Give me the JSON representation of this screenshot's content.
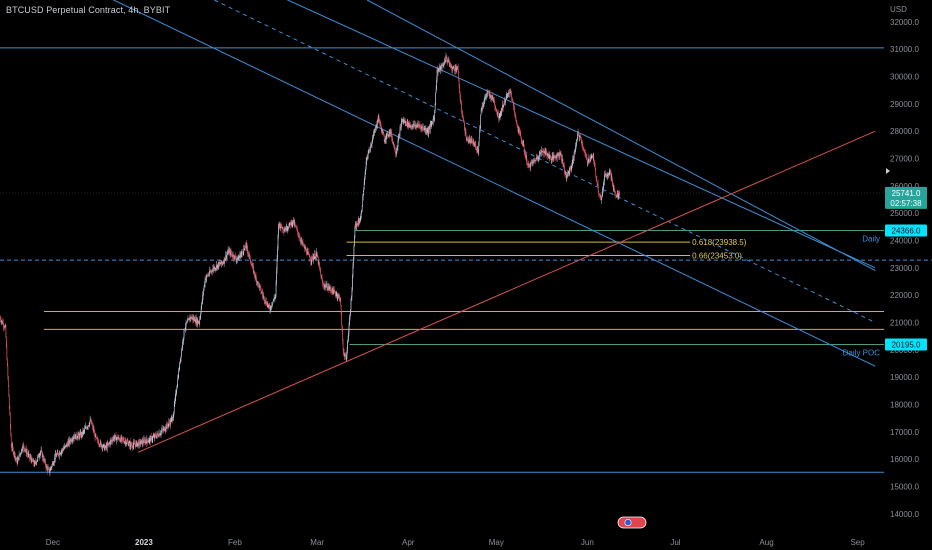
{
  "title": "BTCUSD Perpetual Contract, 4h, BYBIT",
  "colors": {
    "background": "#000000",
    "channel": "#3e8fd8",
    "support_red": "#d9534f",
    "fib": "#d4b84a",
    "yellow_level": "#c9b24a",
    "green_level": "#4e9a7a",
    "current_price_bg": "#26a69a",
    "cyan_tag": "#00e5ff",
    "candle_up": "#b9c7da",
    "candle_down": "#e05560"
  },
  "chart_data": {
    "type": "candlestick",
    "symbol": "BTCUSD Perpetual Contract",
    "interval": "4h",
    "exchange": "BYBIT",
    "y_unit": "USD",
    "ylim": [
      13700,
      32800
    ],
    "xlim": [
      "2022-11-13",
      "2023-09-10"
    ],
    "y_ticks": [
      14000,
      15000,
      16000,
      17000,
      18000,
      19000,
      20000,
      21000,
      22000,
      23000,
      24000,
      25000,
      26000,
      27000,
      28000,
      29000,
      30000,
      31000,
      32000
    ],
    "y_tick_labels": [
      "14000.0",
      "15000.0",
      "16000.0",
      "17000.0",
      "18000.0",
      "19000.0",
      "20000.0",
      "21000.0",
      "22000.0",
      "23000.0",
      "24000.0",
      "25000.0",
      "26000.0",
      "27000.0",
      "28000.0",
      "29000.0",
      "30000.0",
      "31000.0",
      "32000.0"
    ],
    "x_ticks": [
      {
        "date": "2022-12-01",
        "label": "Dec",
        "bold": false
      },
      {
        "date": "2023-01-01",
        "label": "2023",
        "bold": true
      },
      {
        "date": "2023-02-01",
        "label": "Feb",
        "bold": false
      },
      {
        "date": "2023-03-01",
        "label": "Mar",
        "bold": false
      },
      {
        "date": "2023-04-01",
        "label": "Apr",
        "bold": false
      },
      {
        "date": "2023-05-01",
        "label": "May",
        "bold": false
      },
      {
        "date": "2023-06-01",
        "label": "Jun",
        "bold": false
      },
      {
        "date": "2023-07-01",
        "label": "Jul",
        "bold": false
      },
      {
        "date": "2023-08-01",
        "label": "Aug",
        "bold": false
      },
      {
        "date": "2023-09-01",
        "label": "Sep",
        "bold": false
      }
    ],
    "price_path": [
      [
        "2022-11-13",
        21200
      ],
      [
        "2022-11-15",
        20800
      ],
      [
        "2022-11-17",
        16500
      ],
      [
        "2022-11-19",
        15900
      ],
      [
        "2022-11-21",
        16500
      ],
      [
        "2022-11-23",
        16100
      ],
      [
        "2022-11-25",
        15800
      ],
      [
        "2022-11-27",
        16300
      ],
      [
        "2022-11-29",
        15700
      ],
      [
        "2022-11-30",
        15550
      ],
      [
        "2022-12-02",
        16100
      ],
      [
        "2022-12-05",
        16400
      ],
      [
        "2022-12-08",
        16800
      ],
      [
        "2022-12-11",
        16900
      ],
      [
        "2022-12-14",
        17400
      ],
      [
        "2022-12-16",
        16700
      ],
      [
        "2022-12-19",
        16400
      ],
      [
        "2022-12-22",
        16800
      ],
      [
        "2022-12-25",
        16700
      ],
      [
        "2022-12-28",
        16500
      ],
      [
        "2022-12-31",
        16600
      ],
      [
        "2023-01-03",
        16700
      ],
      [
        "2023-01-06",
        16900
      ],
      [
        "2023-01-09",
        17200
      ],
      [
        "2023-01-11",
        17500
      ],
      [
        "2023-01-13",
        19200
      ],
      [
        "2023-01-15",
        20800
      ],
      [
        "2023-01-17",
        21200
      ],
      [
        "2023-01-20",
        21000
      ],
      [
        "2023-01-22",
        22600
      ],
      [
        "2023-01-25",
        23000
      ],
      [
        "2023-01-28",
        23200
      ],
      [
        "2023-01-30",
        23600
      ],
      [
        "2023-02-02",
        23300
      ],
      [
        "2023-02-05",
        23800
      ],
      [
        "2023-02-08",
        22700
      ],
      [
        "2023-02-11",
        21900
      ],
      [
        "2023-02-13",
        21500
      ],
      [
        "2023-02-15",
        22000
      ],
      [
        "2023-02-16",
        24600
      ],
      [
        "2023-02-18",
        24400
      ],
      [
        "2023-02-21",
        24700
      ],
      [
        "2023-02-24",
        23900
      ],
      [
        "2023-02-27",
        23300
      ],
      [
        "2023-03-01",
        23500
      ],
      [
        "2023-03-03",
        22400
      ],
      [
        "2023-03-06",
        22200
      ],
      [
        "2023-03-09",
        21900
      ],
      [
        "2023-03-10",
        20000
      ],
      [
        "2023-03-11",
        19600
      ],
      [
        "2023-03-13",
        22200
      ],
      [
        "2023-03-14",
        24500
      ],
      [
        "2023-03-16",
        24800
      ],
      [
        "2023-03-18",
        27000
      ],
      [
        "2023-03-20",
        27700
      ],
      [
        "2023-03-22",
        28500
      ],
      [
        "2023-03-24",
        27700
      ],
      [
        "2023-03-26",
        28000
      ],
      [
        "2023-03-28",
        27200
      ],
      [
        "2023-03-30",
        28400
      ],
      [
        "2023-04-02",
        28200
      ],
      [
        "2023-04-05",
        28200
      ],
      [
        "2023-04-08",
        28000
      ],
      [
        "2023-04-10",
        28500
      ],
      [
        "2023-04-11",
        30200
      ],
      [
        "2023-04-13",
        30400
      ],
      [
        "2023-04-14",
        30700
      ],
      [
        "2023-04-16",
        30300
      ],
      [
        "2023-04-18",
        30300
      ],
      [
        "2023-04-19",
        29000
      ],
      [
        "2023-04-21",
        27700
      ],
      [
        "2023-04-23",
        27600
      ],
      [
        "2023-04-25",
        27300
      ],
      [
        "2023-04-26",
        28800
      ],
      [
        "2023-04-28",
        29400
      ],
      [
        "2023-04-30",
        29200
      ],
      [
        "2023-05-02",
        28500
      ],
      [
        "2023-05-04",
        29100
      ],
      [
        "2023-05-06",
        29500
      ],
      [
        "2023-05-08",
        28300
      ],
      [
        "2023-05-10",
        27600
      ],
      [
        "2023-05-12",
        26700
      ],
      [
        "2023-05-14",
        26900
      ],
      [
        "2023-05-17",
        27300
      ],
      [
        "2023-05-20",
        27000
      ],
      [
        "2023-05-23",
        27200
      ],
      [
        "2023-05-25",
        26300
      ],
      [
        "2023-05-27",
        26800
      ],
      [
        "2023-05-29",
        27900
      ],
      [
        "2023-05-30",
        27700
      ],
      [
        "2023-06-01",
        26900
      ],
      [
        "2023-06-03",
        27100
      ],
      [
        "2023-06-05",
        25800
      ],
      [
        "2023-06-06",
        25500
      ],
      [
        "2023-06-07",
        26400
      ],
      [
        "2023-06-09",
        26500
      ],
      [
        "2023-06-10",
        25900
      ],
      [
        "2023-06-11",
        25600
      ],
      [
        "2023-06-12",
        25741
      ]
    ],
    "current_price": {
      "value": 25741.0,
      "label": "25741.0",
      "countdown": "02:57:38"
    },
    "lines": {
      "channel": [
        {
          "name": "channel-upper",
          "from": [
            "2022-11-13",
            37600
          ],
          "to": [
            "2023-09-07",
            23000
          ]
        },
        {
          "name": "channel-lower",
          "from": [
            "2022-11-13",
            34800
          ],
          "to": [
            "2023-09-07",
            19400
          ]
        },
        {
          "name": "channel-outer-top",
          "from": [
            "2023-03-18",
            32800
          ],
          "to": [
            "2023-09-07",
            22900
          ]
        },
        {
          "name": "channel-median-dashed",
          "from": [
            "2023-01-25",
            32800
          ],
          "to": [
            "2023-09-07",
            21000
          ]
        }
      ],
      "horizontal": [
        {
          "name": "resistance-31000",
          "value": 31050,
          "style": "solid-blue"
        },
        {
          "name": "blue-dashed-23300",
          "value": 23280,
          "style": "dashed-blue"
        },
        {
          "name": "support-15500",
          "value": 15520,
          "style": "solid-blue"
        }
      ],
      "support_red": {
        "from": [
          "2022-12-30",
          16250
        ],
        "to": [
          "2023-09-07",
          28000
        ]
      }
    },
    "levels": [
      {
        "name": "daily",
        "from": "2023-03-14",
        "value": 24366.0,
        "label": "Daily",
        "price_tag": "24366.0",
        "color": "green"
      },
      {
        "name": "daily-poc",
        "from": "2023-03-12",
        "value": 20195.0,
        "label": "Daily POC",
        "price_tag": "20195.0",
        "color": "green"
      },
      {
        "name": "fib-0618",
        "from": "2023-03-11",
        "to": "2023-07-06",
        "value": 23938.5,
        "label": "0.618(23938.5)",
        "color": "fib"
      },
      {
        "name": "fib-066",
        "from": "2023-03-11",
        "to": "2023-07-06",
        "value": 23453.0,
        "label": "0.66(23453.0)",
        "color": "fib"
      },
      {
        "name": "yellow-21400",
        "from": "2022-11-28",
        "value": 21400,
        "color": "yellow"
      },
      {
        "name": "yellow-20750",
        "from": "2022-11-28",
        "value": 20750,
        "color": "yellow"
      }
    ]
  }
}
